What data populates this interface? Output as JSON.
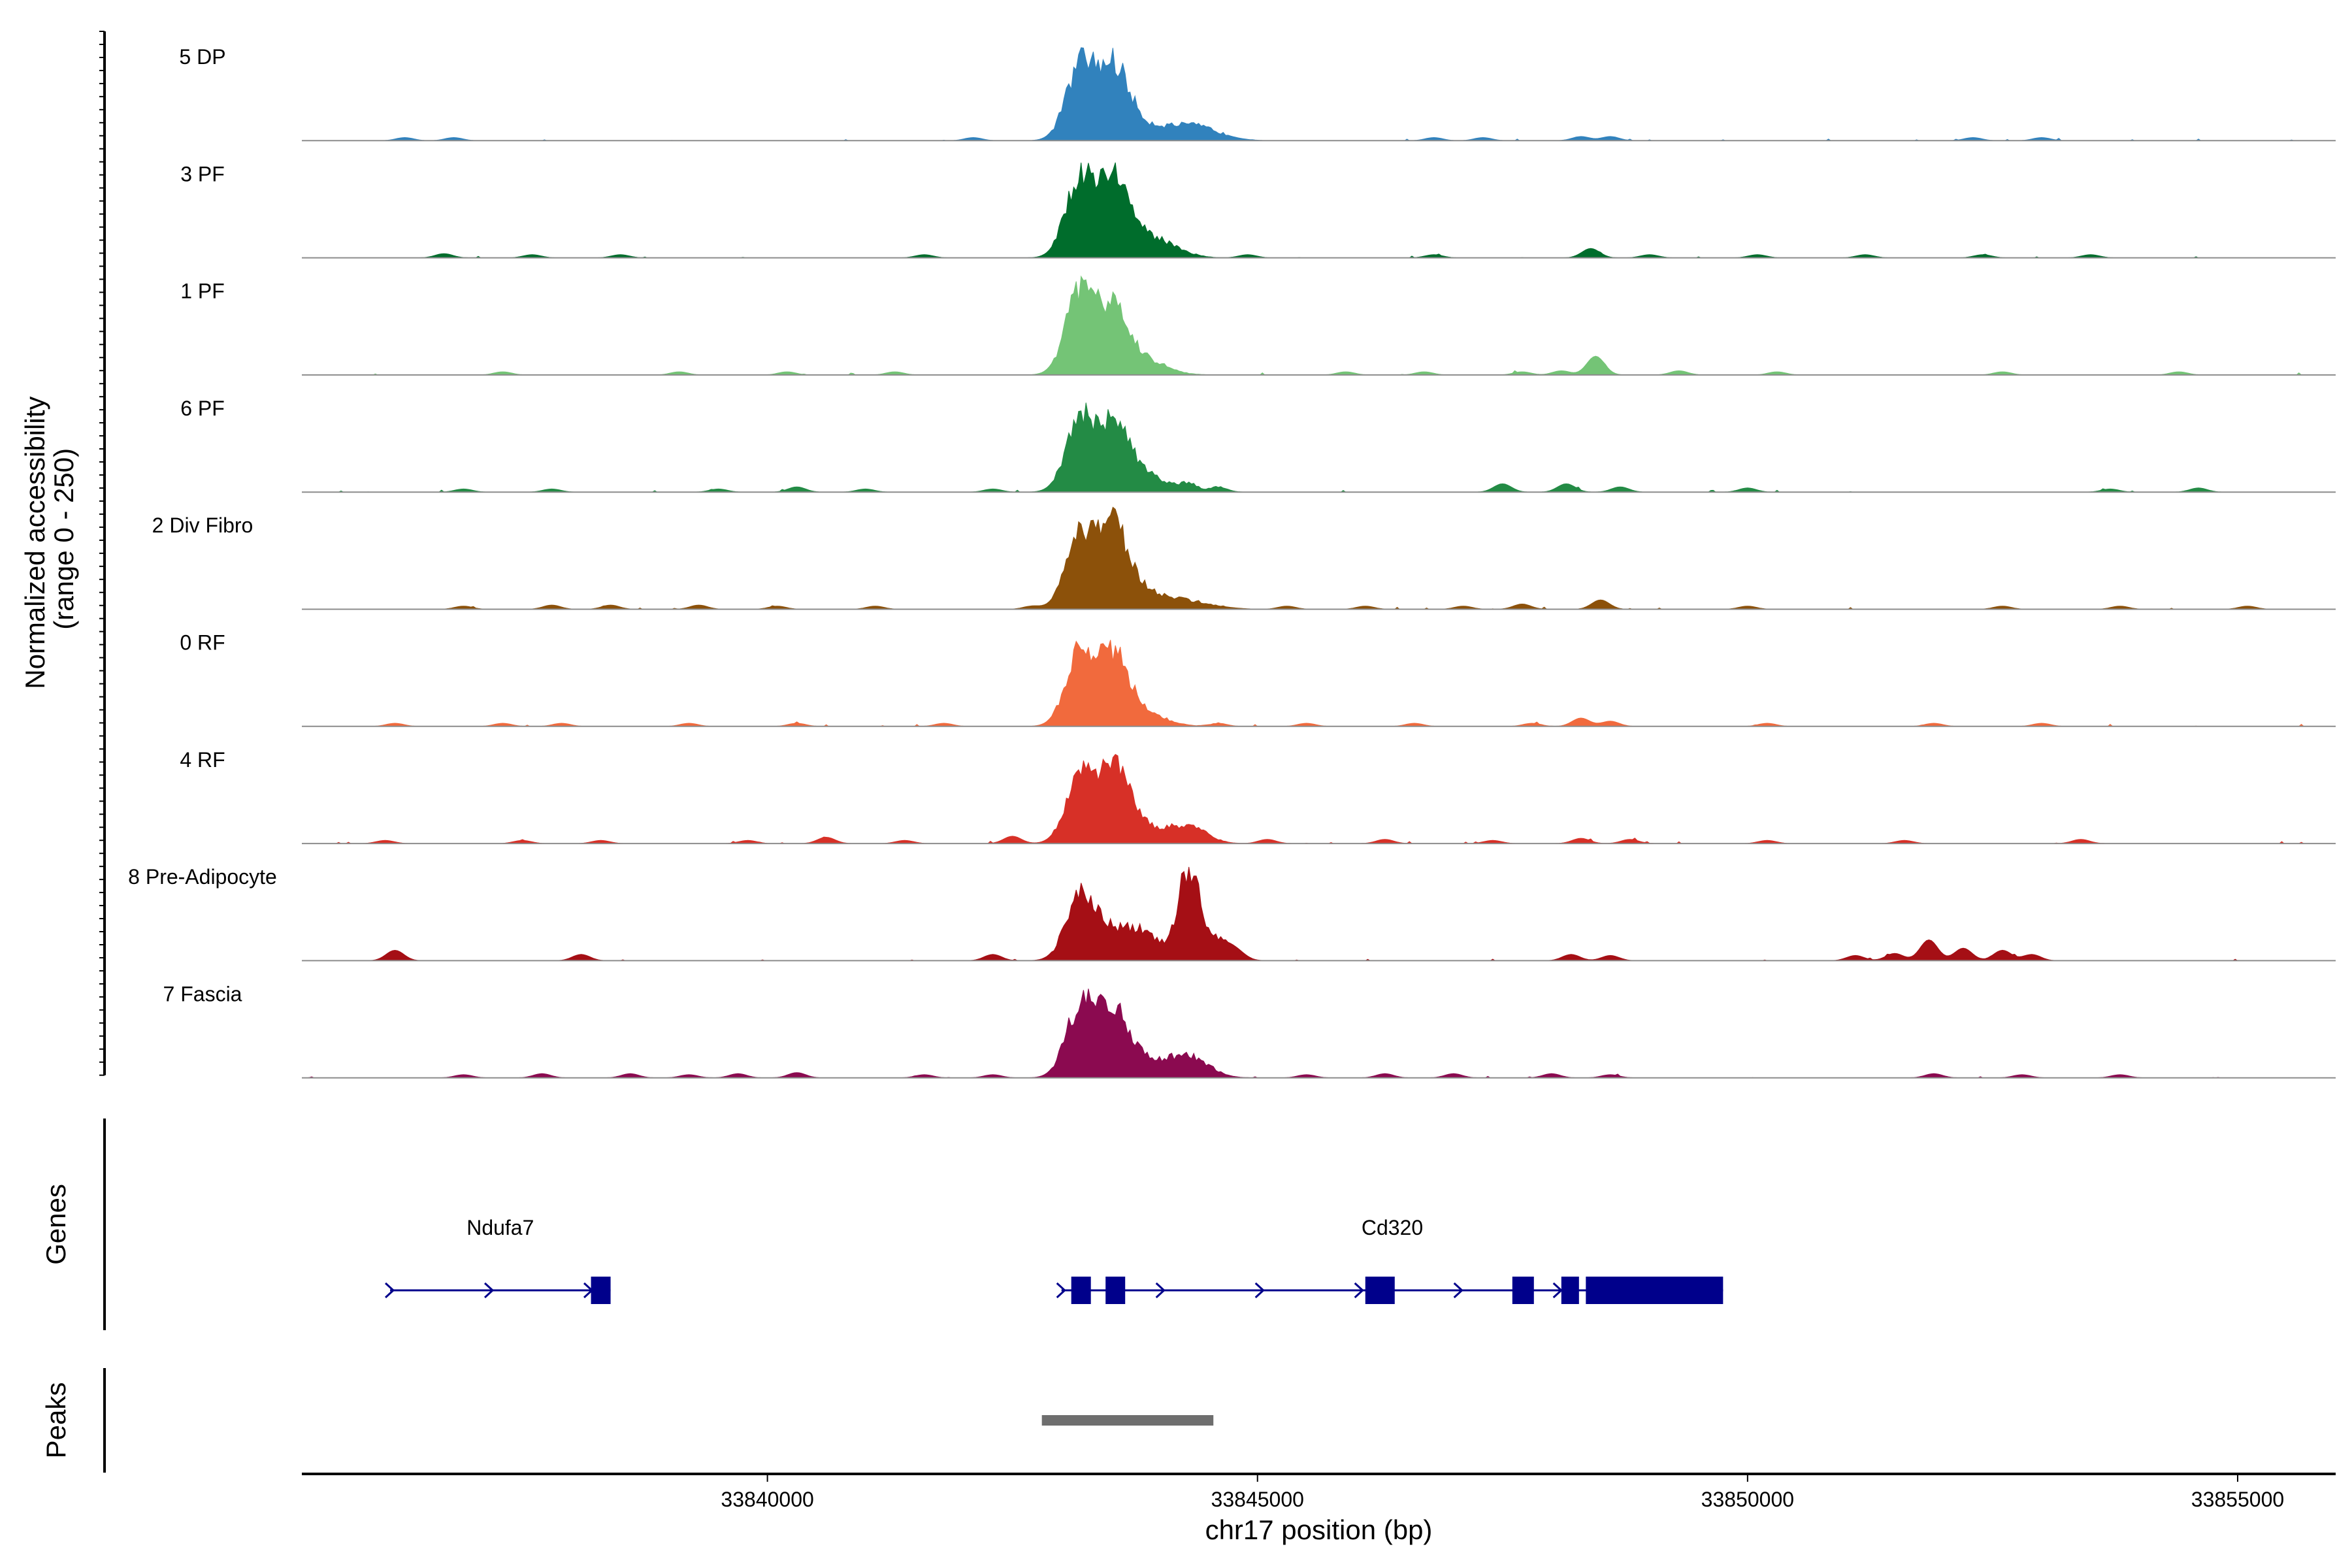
{
  "chart_data": {
    "type": "area",
    "title": "",
    "chromosome": "chr17",
    "xlabel": "chr17 position (bp)",
    "ylabel_line1": "Normalized accessibility",
    "ylabel_line2": "(range 0 - 250)",
    "xlim": [
      33835250,
      33856000
    ],
    "ylim": [
      0,
      250
    ],
    "x_ticks": [
      33840000,
      33845000,
      33850000,
      33855000
    ],
    "x_tick_labels": [
      "33840000",
      "33845000",
      "33850000",
      "33855000"
    ],
    "tracks": [
      {
        "name": "5 DP",
        "color": "#3182bd",
        "peaks": [
          [
            33843200,
            0.72,
            150
          ],
          [
            33843540,
            0.66,
            150
          ],
          [
            33843850,
            0.12,
            220
          ],
          [
            33844350,
            0.14,
            250
          ]
        ],
        "bumps": [
          [
            33836300,
            0.03
          ],
          [
            33836800,
            0.03
          ],
          [
            33842100,
            0.03
          ],
          [
            33846800,
            0.03
          ],
          [
            33847300,
            0.03
          ],
          [
            33848300,
            0.04
          ],
          [
            33848600,
            0.04
          ],
          [
            33852300,
            0.03
          ],
          [
            33853000,
            0.03
          ]
        ]
      },
      {
        "name": "3 PF",
        "color": "#006d2c",
        "peaks": [
          [
            33843200,
            0.78,
            150
          ],
          [
            33843540,
            0.7,
            150
          ],
          [
            33843850,
            0.16,
            220
          ],
          [
            33844100,
            0.06,
            200
          ]
        ],
        "bumps": [
          [
            33836700,
            0.04
          ],
          [
            33837600,
            0.03
          ],
          [
            33838500,
            0.03
          ],
          [
            33841600,
            0.03
          ],
          [
            33844900,
            0.03
          ],
          [
            33846800,
            0.03
          ],
          [
            33848400,
            0.09
          ],
          [
            33849000,
            0.03
          ],
          [
            33850100,
            0.03
          ],
          [
            33851200,
            0.03
          ],
          [
            33852400,
            0.03
          ],
          [
            33853500,
            0.03
          ]
        ]
      },
      {
        "name": "1 PF",
        "color": "#74c476",
        "peaks": [
          [
            33843200,
            0.82,
            150
          ],
          [
            33843540,
            0.56,
            150
          ],
          [
            33843850,
            0.14,
            220
          ]
        ],
        "bumps": [
          [
            33837300,
            0.03
          ],
          [
            33839100,
            0.03
          ],
          [
            33840200,
            0.03
          ],
          [
            33841300,
            0.03
          ],
          [
            33845900,
            0.03
          ],
          [
            33846700,
            0.03
          ],
          [
            33847700,
            0.03
          ],
          [
            33848100,
            0.04
          ],
          [
            33848450,
            0.18
          ],
          [
            33849300,
            0.04
          ],
          [
            33850300,
            0.03
          ],
          [
            33852600,
            0.03
          ],
          [
            33854400,
            0.03
          ]
        ]
      },
      {
        "name": "6 PF",
        "color": "#238b45",
        "peaks": [
          [
            33843200,
            0.68,
            150
          ],
          [
            33843540,
            0.58,
            150
          ],
          [
            33843850,
            0.16,
            220
          ]
        ],
        "bumps": [
          [
            33836900,
            0.03
          ],
          [
            33837800,
            0.03
          ],
          [
            33839500,
            0.03
          ],
          [
            33840300,
            0.05
          ],
          [
            33841000,
            0.03
          ],
          [
            33842300,
            0.03
          ],
          [
            33844300,
            0.07
          ],
          [
            33844600,
            0.05
          ],
          [
            33847500,
            0.08
          ],
          [
            33848150,
            0.08
          ],
          [
            33848700,
            0.05
          ],
          [
            33850000,
            0.04
          ],
          [
            33853700,
            0.03
          ],
          [
            33854600,
            0.04
          ]
        ]
      },
      {
        "name": "2 Div Fibro",
        "color": "#8c510a",
        "peaks": [
          [
            33843200,
            0.72,
            150
          ],
          [
            33843540,
            0.72,
            150
          ],
          [
            33843850,
            0.14,
            220
          ],
          [
            33844300,
            0.07,
            260
          ]
        ],
        "bumps": [
          [
            33836900,
            0.03
          ],
          [
            33837800,
            0.04
          ],
          [
            33838400,
            0.04
          ],
          [
            33839300,
            0.04
          ],
          [
            33840100,
            0.03
          ],
          [
            33841100,
            0.03
          ],
          [
            33842700,
            0.03
          ],
          [
            33845300,
            0.03
          ],
          [
            33846100,
            0.03
          ],
          [
            33847100,
            0.03
          ],
          [
            33847700,
            0.05
          ],
          [
            33848500,
            0.09
          ],
          [
            33850000,
            0.03
          ],
          [
            33852600,
            0.03
          ],
          [
            33853800,
            0.03
          ],
          [
            33855100,
            0.03
          ]
        ]
      },
      {
        "name": "0 RF",
        "color": "#f16a3d",
        "peaks": [
          [
            33843200,
            0.72,
            150
          ],
          [
            33843540,
            0.62,
            150
          ],
          [
            33843850,
            0.12,
            220
          ]
        ],
        "bumps": [
          [
            33836200,
            0.03
          ],
          [
            33837300,
            0.03
          ],
          [
            33837900,
            0.03
          ],
          [
            33839200,
            0.03
          ],
          [
            33840300,
            0.03
          ],
          [
            33841800,
            0.03
          ],
          [
            33844600,
            0.03
          ],
          [
            33845500,
            0.03
          ],
          [
            33846600,
            0.03
          ],
          [
            33847800,
            0.03
          ],
          [
            33848300,
            0.08
          ],
          [
            33848600,
            0.05
          ],
          [
            33850200,
            0.03
          ],
          [
            33851900,
            0.03
          ],
          [
            33853000,
            0.03
          ]
        ]
      },
      {
        "name": "4 RF",
        "color": "#d73027",
        "peaks": [
          [
            33843200,
            0.62,
            150
          ],
          [
            33843540,
            0.74,
            150
          ],
          [
            33843850,
            0.14,
            220
          ],
          [
            33844300,
            0.16,
            180
          ]
        ],
        "bumps": [
          [
            33836100,
            0.03
          ],
          [
            33837500,
            0.03
          ],
          [
            33838300,
            0.03
          ],
          [
            33839800,
            0.03
          ],
          [
            33840600,
            0.06
          ],
          [
            33841400,
            0.03
          ],
          [
            33842500,
            0.07
          ],
          [
            33845100,
            0.04
          ],
          [
            33846300,
            0.04
          ],
          [
            33847400,
            0.03
          ],
          [
            33848300,
            0.05
          ],
          [
            33848800,
            0.04
          ],
          [
            33850200,
            0.03
          ],
          [
            33851600,
            0.03
          ],
          [
            33853400,
            0.04
          ]
        ]
      },
      {
        "name": "8 Pre-Adipocyte",
        "color": "#a50f15",
        "peaks": [
          [
            33843200,
            0.62,
            150
          ],
          [
            33843540,
            0.24,
            180
          ],
          [
            33843850,
            0.24,
            180
          ],
          [
            33844300,
            0.88,
            110
          ],
          [
            33844620,
            0.18,
            130
          ]
        ],
        "bumps": [
          [
            33836200,
            0.1
          ],
          [
            33838100,
            0.06
          ],
          [
            33842300,
            0.06
          ],
          [
            33844800,
            0.05
          ],
          [
            33848200,
            0.06
          ],
          [
            33848600,
            0.05
          ],
          [
            33851100,
            0.05
          ],
          [
            33851500,
            0.07
          ],
          [
            33851850,
            0.2
          ],
          [
            33852200,
            0.12
          ],
          [
            33852600,
            0.1
          ],
          [
            33852900,
            0.06
          ]
        ]
      },
      {
        "name": "7 Fascia",
        "color": "#8b0a50",
        "peaks": [
          [
            33843200,
            0.68,
            150
          ],
          [
            33843540,
            0.6,
            150
          ],
          [
            33843850,
            0.14,
            220
          ],
          [
            33844300,
            0.2,
            200
          ]
        ],
        "bumps": [
          [
            33836900,
            0.03
          ],
          [
            33837700,
            0.04
          ],
          [
            33838600,
            0.04
          ],
          [
            33839200,
            0.03
          ],
          [
            33839700,
            0.04
          ],
          [
            33840300,
            0.05
          ],
          [
            33841600,
            0.03
          ],
          [
            33842300,
            0.03
          ],
          [
            33845500,
            0.03
          ],
          [
            33846300,
            0.04
          ],
          [
            33847000,
            0.04
          ],
          [
            33848000,
            0.04
          ],
          [
            33848600,
            0.03
          ],
          [
            33851900,
            0.04
          ],
          [
            33852800,
            0.03
          ],
          [
            33853800,
            0.03
          ]
        ]
      }
    ],
    "genes_label": "Genes",
    "peaks_label": "Peaks",
    "genes": [
      {
        "name": "Ndufa7",
        "start": 33836150,
        "end": 33838400,
        "strand": "+",
        "exons": [
          [
            33838200,
            33838400
          ]
        ]
      },
      {
        "name": "Cd320",
        "start": 33843000,
        "end": 33849750,
        "strand": "+",
        "exons": [
          [
            33843100,
            33843300
          ],
          [
            33843450,
            33843650
          ],
          [
            33846100,
            33846400
          ],
          [
            33847600,
            33847820
          ],
          [
            33848100,
            33848280
          ],
          [
            33848350,
            33849750
          ]
        ]
      }
    ],
    "peak_regions": [
      {
        "start": 33842800,
        "end": 33844550
      }
    ],
    "colors": {
      "gene": "#00008b",
      "peak": "#6e6e6e",
      "baseline": "#8c8c8c",
      "axis": "#000000"
    }
  }
}
